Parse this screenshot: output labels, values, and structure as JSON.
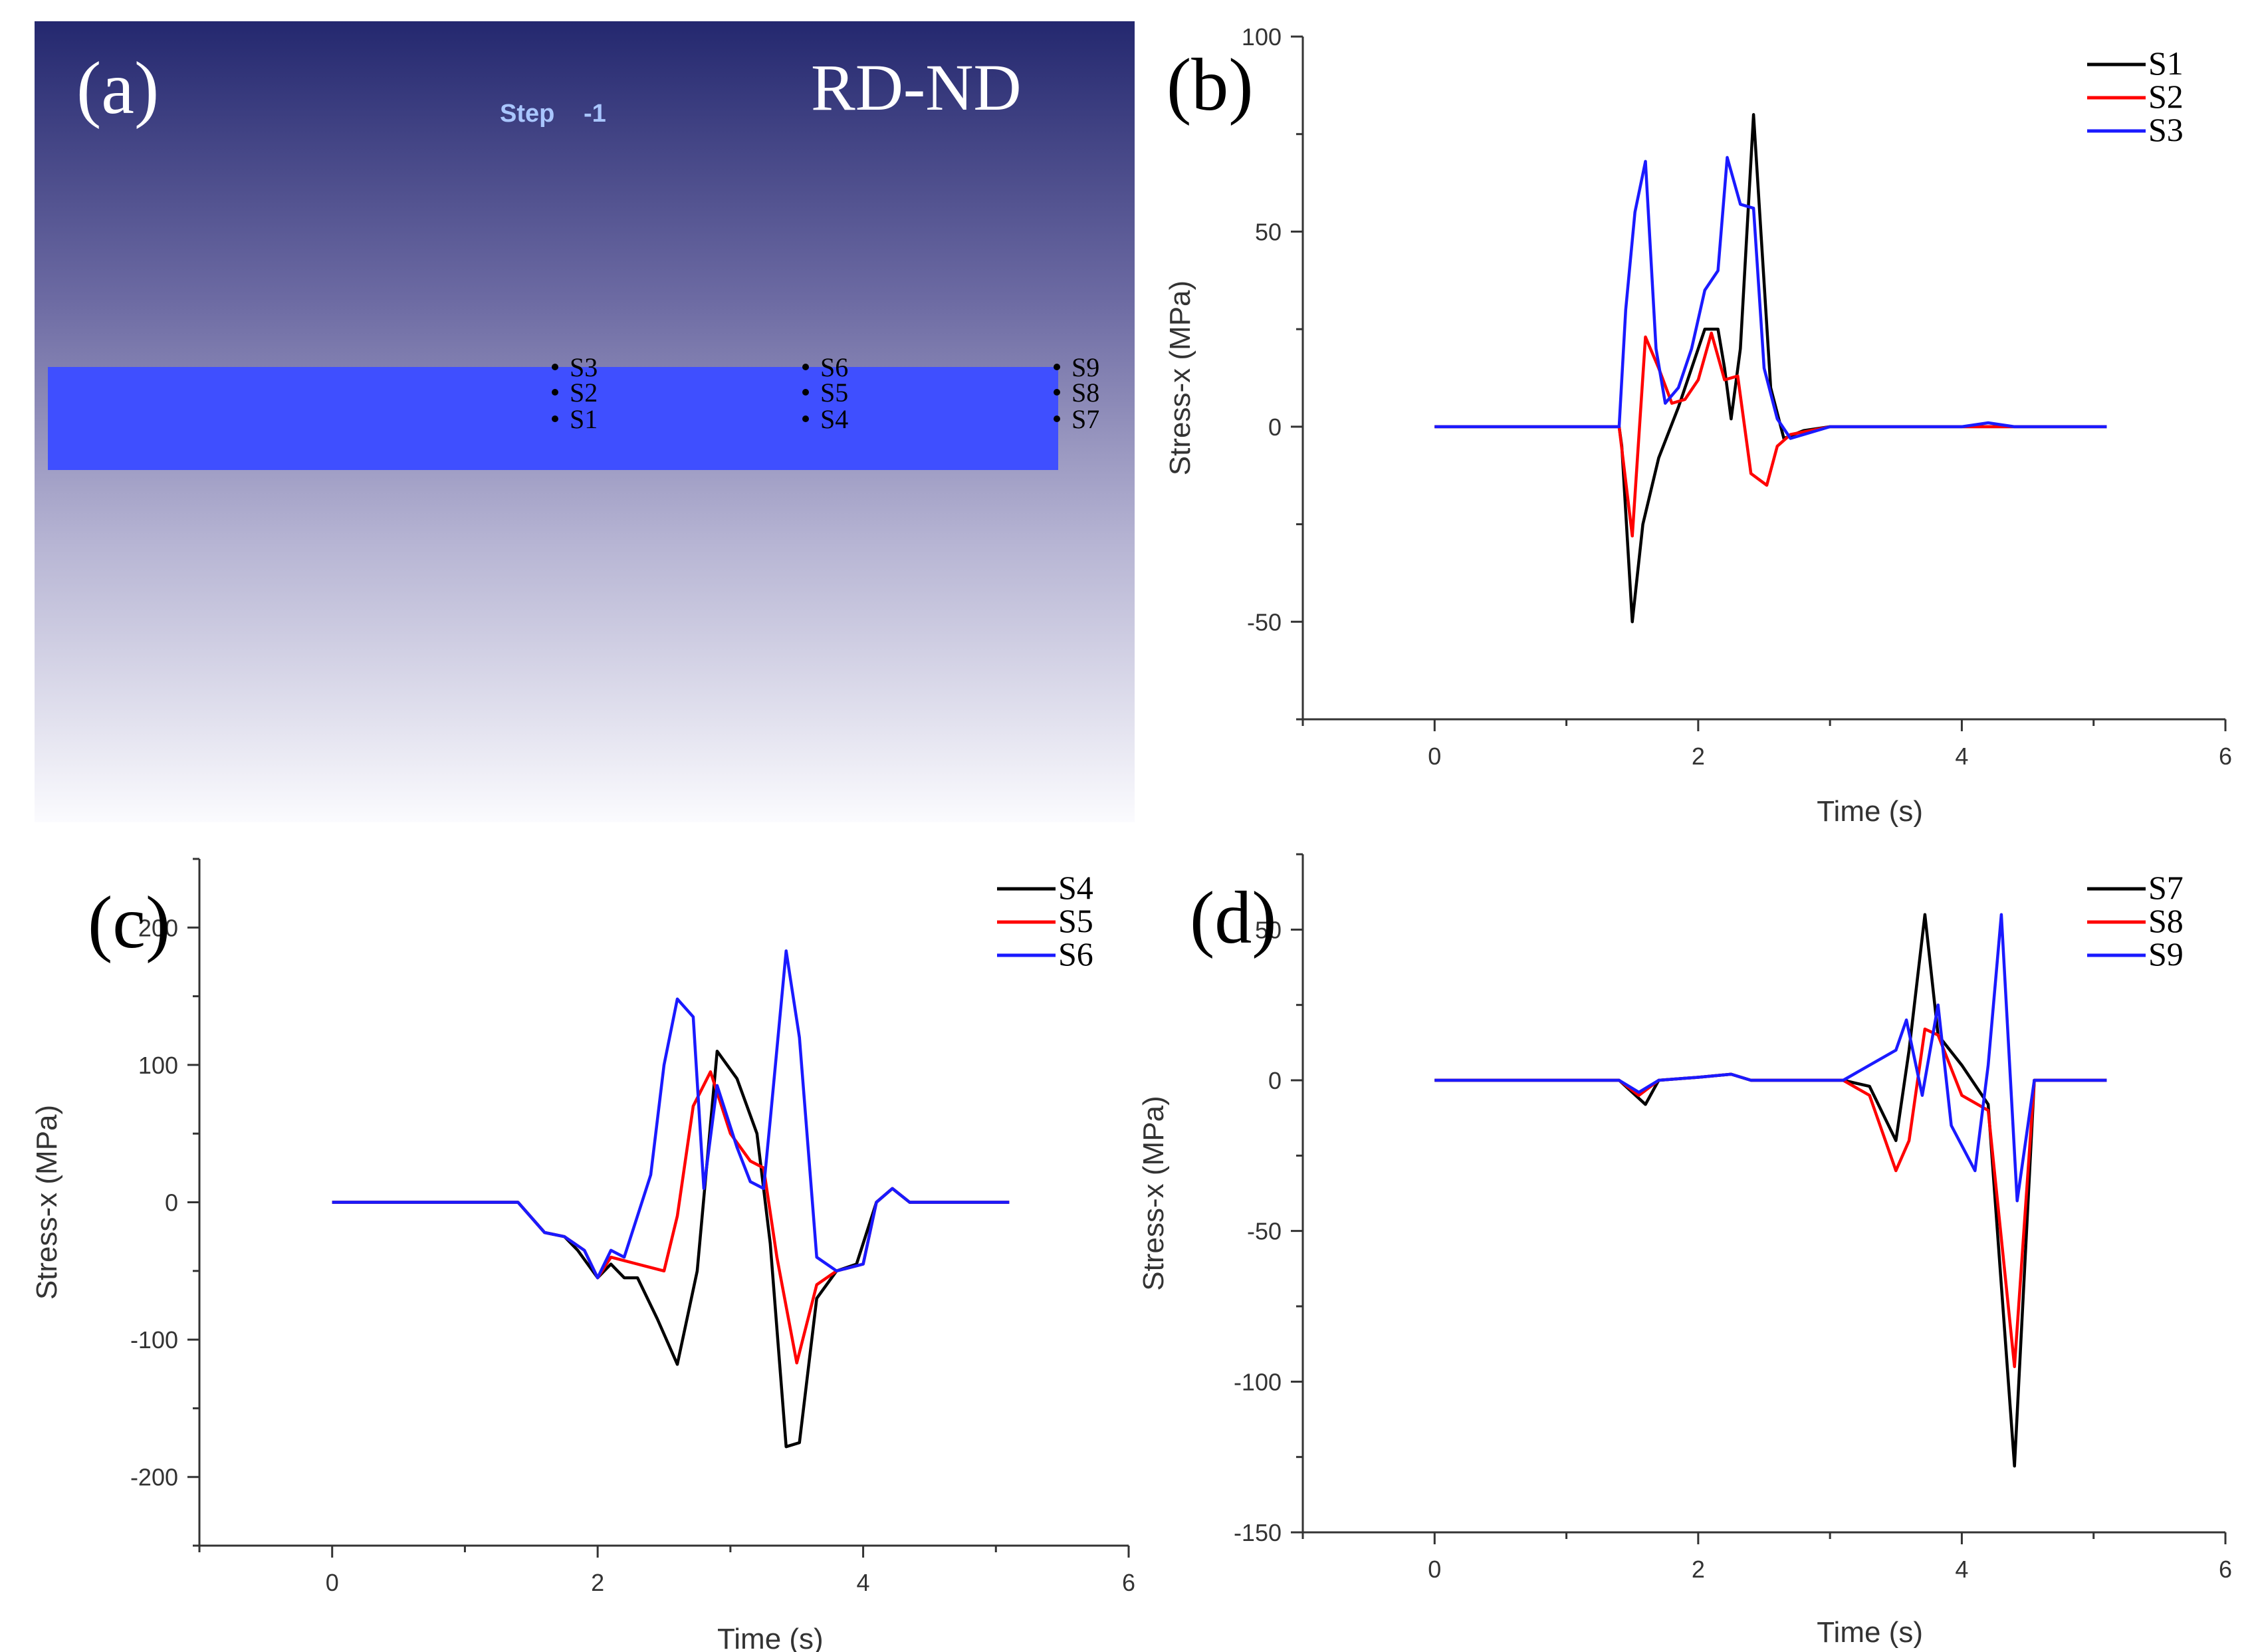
{
  "panel_a": {
    "label": "(a)",
    "view": "RD-ND",
    "step_label": "Step",
    "step_value": "-1",
    "points": [
      "S1",
      "S2",
      "S3",
      "S4",
      "S5",
      "S6",
      "S7",
      "S8",
      "S9"
    ]
  },
  "colors": {
    "S_black": "#000000",
    "S_red": "#ff0000",
    "S_blue": "#1a1aff",
    "plate": "#3f4fff"
  },
  "chart_data": [
    {
      "id": "b",
      "label": "(b)",
      "type": "line",
      "xlabel": "Time (s)",
      "ylabel": "Stress-x (MPa)",
      "xlim": [
        -1,
        6
      ],
      "ylim": [
        -75,
        100
      ],
      "xticks": [
        0,
        2,
        4,
        6
      ],
      "yticks": [
        -50,
        0,
        50,
        100
      ],
      "series": [
        {
          "name": "S1",
          "color": "#000000",
          "points": [
            [
              0,
              0
            ],
            [
              1.4,
              0
            ],
            [
              1.42,
              -5
            ],
            [
              1.5,
              -50
            ],
            [
              1.58,
              -25
            ],
            [
              1.7,
              -8
            ],
            [
              1.85,
              5
            ],
            [
              2.0,
              20
            ],
            [
              2.05,
              25
            ],
            [
              2.15,
              25
            ],
            [
              2.2,
              15
            ],
            [
              2.25,
              2
            ],
            [
              2.32,
              20
            ],
            [
              2.42,
              80
            ],
            [
              2.55,
              10
            ],
            [
              2.65,
              -3
            ],
            [
              2.8,
              -1
            ],
            [
              3.0,
              0
            ],
            [
              3.2,
              0
            ],
            [
              3.5,
              0
            ],
            [
              4.0,
              0
            ],
            [
              4.5,
              0
            ],
            [
              5.1,
              0
            ]
          ]
        },
        {
          "name": "S2",
          "color": "#ff0000",
          "points": [
            [
              0,
              0
            ],
            [
              1.4,
              0
            ],
            [
              1.5,
              -28
            ],
            [
              1.6,
              23
            ],
            [
              1.7,
              15
            ],
            [
              1.8,
              6
            ],
            [
              1.9,
              7
            ],
            [
              2.0,
              12
            ],
            [
              2.1,
              24
            ],
            [
              2.2,
              12
            ],
            [
              2.3,
              13
            ],
            [
              2.4,
              -12
            ],
            [
              2.52,
              -15
            ],
            [
              2.6,
              -5
            ],
            [
              2.7,
              -2
            ],
            [
              3.0,
              0
            ],
            [
              3.5,
              0
            ],
            [
              4.0,
              0
            ],
            [
              5.1,
              0
            ]
          ]
        },
        {
          "name": "S3",
          "color": "#1a1aff",
          "points": [
            [
              0,
              0
            ],
            [
              1.4,
              0
            ],
            [
              1.45,
              30
            ],
            [
              1.52,
              55
            ],
            [
              1.6,
              68
            ],
            [
              1.68,
              20
            ],
            [
              1.75,
              6
            ],
            [
              1.85,
              10
            ],
            [
              1.95,
              20
            ],
            [
              2.05,
              35
            ],
            [
              2.15,
              40
            ],
            [
              2.22,
              69
            ],
            [
              2.32,
              57
            ],
            [
              2.42,
              56
            ],
            [
              2.5,
              15
            ],
            [
              2.6,
              2
            ],
            [
              2.7,
              -3
            ],
            [
              3.0,
              0
            ],
            [
              3.5,
              0
            ],
            [
              4.0,
              0
            ],
            [
              4.2,
              1
            ],
            [
              4.4,
              0
            ],
            [
              5.1,
              0
            ]
          ]
        }
      ]
    },
    {
      "id": "c",
      "label": "(c)",
      "type": "line",
      "xlabel": "Time (s)",
      "ylabel": "Stress-x (MPa)",
      "xlim": [
        -1,
        6
      ],
      "ylim": [
        -250,
        250
      ],
      "xticks": [
        0,
        2,
        4,
        6
      ],
      "yticks": [
        -200,
        -100,
        0,
        100,
        200
      ],
      "series": [
        {
          "name": "S4",
          "color": "#000000",
          "points": [
            [
              0,
              0
            ],
            [
              1.4,
              0
            ],
            [
              1.6,
              -22
            ],
            [
              1.75,
              -25
            ],
            [
              1.85,
              -35
            ],
            [
              2.0,
              -55
            ],
            [
              2.1,
              -45
            ],
            [
              2.2,
              -55
            ],
            [
              2.3,
              -55
            ],
            [
              2.45,
              -85
            ],
            [
              2.6,
              -118
            ],
            [
              2.75,
              -50
            ],
            [
              2.9,
              110
            ],
            [
              3.05,
              90
            ],
            [
              3.2,
              50
            ],
            [
              3.3,
              -30
            ],
            [
              3.42,
              -178
            ],
            [
              3.52,
              -175
            ],
            [
              3.65,
              -70
            ],
            [
              3.8,
              -50
            ],
            [
              3.95,
              -45
            ],
            [
              4.1,
              0
            ],
            [
              4.22,
              10
            ],
            [
              4.35,
              0
            ],
            [
              4.5,
              0
            ],
            [
              5.1,
              0
            ]
          ]
        },
        {
          "name": "S5",
          "color": "#ff0000",
          "points": [
            [
              0,
              0
            ],
            [
              1.4,
              0
            ],
            [
              1.6,
              -22
            ],
            [
              1.75,
              -25
            ],
            [
              1.9,
              -35
            ],
            [
              2.0,
              -55
            ],
            [
              2.1,
              -40
            ],
            [
              2.3,
              -45
            ],
            [
              2.5,
              -50
            ],
            [
              2.6,
              -10
            ],
            [
              2.72,
              70
            ],
            [
              2.85,
              95
            ],
            [
              3.0,
              50
            ],
            [
              3.15,
              30
            ],
            [
              3.25,
              25
            ],
            [
              3.35,
              -40
            ],
            [
              3.5,
              -117
            ],
            [
              3.65,
              -60
            ],
            [
              3.8,
              -50
            ],
            [
              4.0,
              -45
            ],
            [
              4.1,
              0
            ],
            [
              4.22,
              10
            ],
            [
              4.35,
              0
            ],
            [
              5.1,
              0
            ]
          ]
        },
        {
          "name": "S6",
          "color": "#1a1aff",
          "points": [
            [
              0,
              0
            ],
            [
              1.4,
              0
            ],
            [
              1.6,
              -22
            ],
            [
              1.75,
              -25
            ],
            [
              1.9,
              -35
            ],
            [
              2.0,
              -55
            ],
            [
              2.1,
              -35
            ],
            [
              2.2,
              -40
            ],
            [
              2.4,
              20
            ],
            [
              2.5,
              100
            ],
            [
              2.6,
              148
            ],
            [
              2.72,
              135
            ],
            [
              2.8,
              10
            ],
            [
              2.9,
              85
            ],
            [
              3.05,
              40
            ],
            [
              3.15,
              15
            ],
            [
              3.25,
              10
            ],
            [
              3.3,
              60
            ],
            [
              3.42,
              183
            ],
            [
              3.52,
              120
            ],
            [
              3.65,
              -40
            ],
            [
              3.8,
              -50
            ],
            [
              4.0,
              -45
            ],
            [
              4.1,
              0
            ],
            [
              4.22,
              10
            ],
            [
              4.35,
              0
            ],
            [
              5.1,
              0
            ]
          ]
        }
      ]
    },
    {
      "id": "d",
      "label": "(d)",
      "type": "line",
      "xlabel": "Time (s)",
      "ylabel": "Stress-x (MPa)",
      "xlim": [
        -1,
        6
      ],
      "ylim": [
        -150,
        75
      ],
      "xticks": [
        0,
        2,
        4,
        6
      ],
      "yticks": [
        -150,
        -100,
        -50,
        0,
        50
      ],
      "series": [
        {
          "name": "S7",
          "color": "#000000",
          "points": [
            [
              0,
              0
            ],
            [
              1.4,
              0
            ],
            [
              1.6,
              -8
            ],
            [
              1.7,
              0
            ],
            [
              2.0,
              1
            ],
            [
              2.25,
              2
            ],
            [
              2.4,
              0
            ],
            [
              3.1,
              0
            ],
            [
              3.3,
              -2
            ],
            [
              3.5,
              -20
            ],
            [
              3.6,
              10
            ],
            [
              3.72,
              55
            ],
            [
              3.82,
              15
            ],
            [
              4.0,
              5
            ],
            [
              4.2,
              -8
            ],
            [
              4.4,
              -128
            ],
            [
              4.55,
              0
            ],
            [
              5.1,
              0
            ]
          ]
        },
        {
          "name": "S8",
          "color": "#ff0000",
          "points": [
            [
              0,
              0
            ],
            [
              1.4,
              0
            ],
            [
              1.55,
              -5
            ],
            [
              1.7,
              0
            ],
            [
              2.0,
              1
            ],
            [
              2.25,
              2
            ],
            [
              2.4,
              0
            ],
            [
              3.1,
              0
            ],
            [
              3.3,
              -5
            ],
            [
              3.5,
              -30
            ],
            [
              3.6,
              -20
            ],
            [
              3.72,
              17
            ],
            [
              3.82,
              15
            ],
            [
              4.0,
              -5
            ],
            [
              4.2,
              -10
            ],
            [
              4.4,
              -95
            ],
            [
              4.55,
              0
            ],
            [
              5.1,
              0
            ]
          ]
        },
        {
          "name": "S9",
          "color": "#1a1aff",
          "points": [
            [
              0,
              0
            ],
            [
              1.4,
              0
            ],
            [
              1.55,
              -4
            ],
            [
              1.7,
              0
            ],
            [
              2.0,
              1
            ],
            [
              2.25,
              2
            ],
            [
              2.4,
              0
            ],
            [
              3.1,
              0
            ],
            [
              3.3,
              5
            ],
            [
              3.5,
              10
            ],
            [
              3.58,
              20
            ],
            [
              3.7,
              -5
            ],
            [
              3.82,
              25
            ],
            [
              3.92,
              -15
            ],
            [
              4.1,
              -30
            ],
            [
              4.2,
              5
            ],
            [
              4.3,
              55
            ],
            [
              4.42,
              -40
            ],
            [
              4.55,
              0
            ],
            [
              5.1,
              0
            ]
          ]
        }
      ]
    }
  ]
}
